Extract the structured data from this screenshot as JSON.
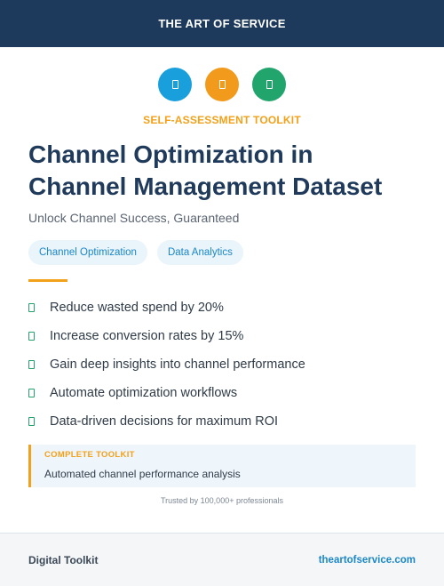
{
  "header": {
    "brand": "THE ART OF SERVICE"
  },
  "icons": [
    {
      "name": "blue-doc-icon",
      "color": "#1a9fdd"
    },
    {
      "name": "orange-doc-icon",
      "color": "#f19a1c"
    },
    {
      "name": "green-doc-icon",
      "color": "#21a56d"
    }
  ],
  "eyebrow": "SELF-ASSESSMENT TOOLKIT",
  "title": {
    "line1": "Channel Optimization in",
    "line2": "Channel Management Dataset"
  },
  "subtitle": "Unlock Channel Success, Guaranteed",
  "tags": [
    "Channel Optimization",
    "Data Analytics"
  ],
  "benefits": [
    "Reduce wasted spend by 20%",
    "Increase conversion rates by 15%",
    "Gain deep insights into channel performance",
    "Automate optimization workflows",
    "Data-driven decisions for maximum ROI"
  ],
  "callout": {
    "label": "COMPLETE TOOLKIT",
    "text": "Automated channel performance analysis"
  },
  "trusted": "Trusted by 100,000+ professionals",
  "footer": {
    "left": "Digital Toolkit",
    "right": "theartofservice.com"
  }
}
